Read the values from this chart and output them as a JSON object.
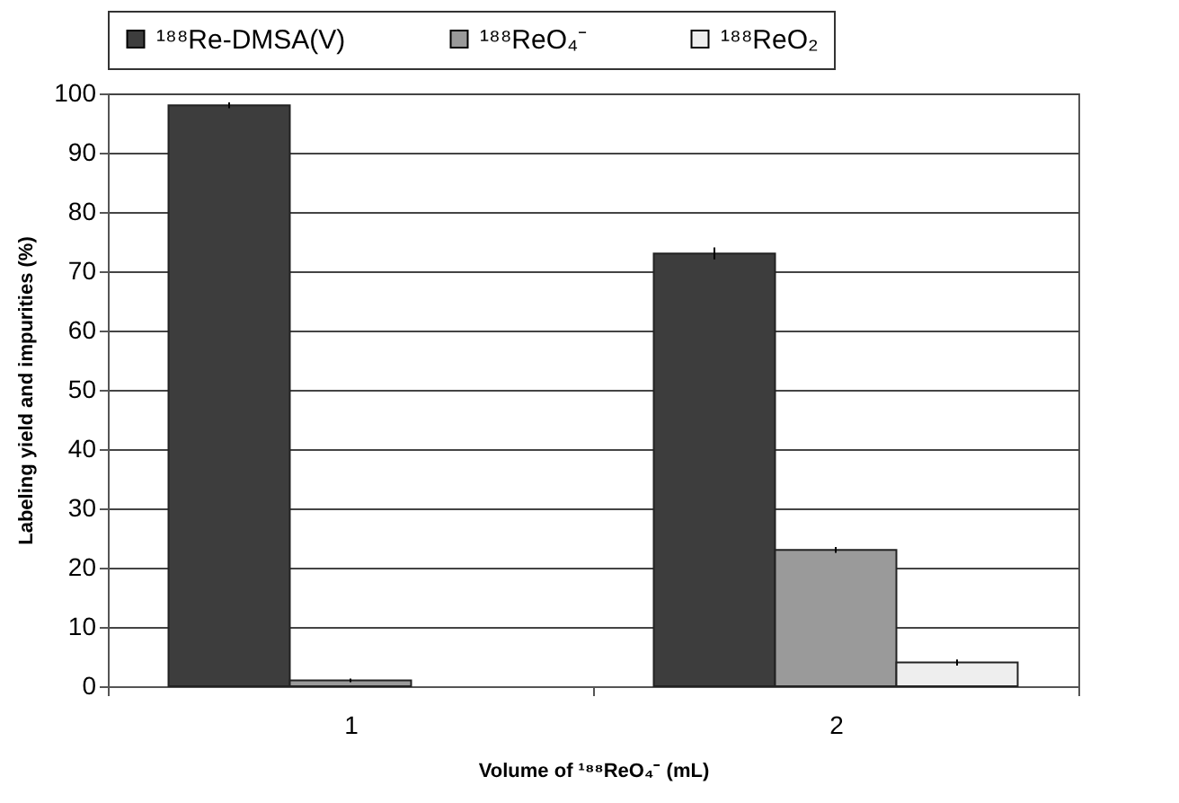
{
  "chart_data": {
    "type": "bar",
    "xlabel": "Volume of ¹⁸⁸ReO₄⁻ (mL)",
    "ylabel": "Labeling yield and impurities (%)",
    "categories": [
      "1",
      "2"
    ],
    "series": [
      {
        "name": "¹⁸⁸Re-DMSA(V)",
        "color": "#3d3d3d",
        "values": [
          98,
          73
        ],
        "errors": [
          0.5,
          1
        ]
      },
      {
        "name": "¹⁸⁸ReO₄⁻",
        "color": "#9a9a9a",
        "values": [
          1,
          23
        ],
        "errors": [
          0.3,
          0.5
        ]
      },
      {
        "name": "¹⁸⁸ReO₂",
        "color": "#eeeeee",
        "values": [
          null,
          4
        ],
        "errors": [
          null,
          0.5
        ]
      }
    ],
    "ylim": [
      0,
      100
    ],
    "yticks": [
      0,
      10,
      20,
      30,
      40,
      50,
      60,
      70,
      80,
      90,
      100
    ],
    "grid": "y",
    "legend": "top"
  }
}
